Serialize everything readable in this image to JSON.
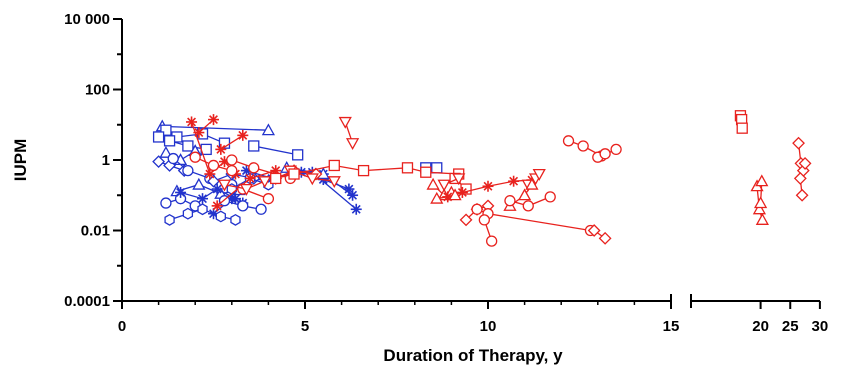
{
  "chart_data": {
    "type": "scatter",
    "title": "",
    "xlabel": "Duration of Therapy, y",
    "ylabel": "IUPM",
    "yscale": "log",
    "ylim": [
      0.0001,
      10000
    ],
    "y_ticks": [
      {
        "value": 0.0001,
        "label": "0.0001"
      },
      {
        "value": 0.01,
        "label": "0.01"
      },
      {
        "value": 1,
        "label": "1"
      },
      {
        "value": 100,
        "label": "100"
      },
      {
        "value": 10000,
        "label": "10 000"
      }
    ],
    "x_axis_segments": [
      {
        "range": [
          0,
          15.8
        ],
        "ticks": [
          {
            "value": 0,
            "label": "0"
          },
          {
            "value": 5,
            "label": "5"
          },
          {
            "value": 10,
            "label": "10"
          },
          {
            "value": 15,
            "label": "15"
          }
        ]
      },
      {
        "range": [
          16.2,
          30
        ],
        "ticks": [
          {
            "value": 20,
            "label": "20"
          },
          {
            "value": 25,
            "label": "25"
          },
          {
            "value": 30,
            "label": "30"
          }
        ]
      }
    ],
    "grid": false,
    "legend": "none",
    "colors": {
      "blue": "#2233cc",
      "red": "#e8221e"
    },
    "series": [
      {
        "color": "blue",
        "marker": "triangle",
        "x": [
          1.1,
          4.0
        ],
        "y": [
          9,
          7
        ]
      },
      {
        "color": "blue",
        "marker": "square",
        "x": [
          1.2,
          1.5,
          2.2,
          2.8
        ],
        "y": [
          7,
          4.5,
          5.5,
          3
        ]
      },
      {
        "color": "blue",
        "marker": "square",
        "x": [
          1.0,
          1.3,
          1.8,
          2.3
        ],
        "y": [
          4.5,
          3.5,
          2.5,
          2
        ]
      },
      {
        "color": "blue",
        "marker": "square",
        "x": [
          3.6,
          4.8
        ],
        "y": [
          2.5,
          1.4
        ]
      },
      {
        "color": "blue",
        "marker": "square",
        "x": [
          8.3,
          8.6
        ],
        "y": [
          0.6,
          0.6
        ]
      },
      {
        "color": "blue",
        "marker": "triangle",
        "x": [
          1.2,
          1.6,
          2.0
        ],
        "y": [
          1.6,
          1.0,
          1.8
        ]
      },
      {
        "color": "blue",
        "marker": "diamond",
        "x": [
          1.0,
          1.3,
          1.7
        ],
        "y": [
          0.9,
          0.7,
          0.5
        ]
      },
      {
        "color": "blue",
        "marker": "circle",
        "x": [
          1.4,
          1.8,
          2.4,
          3.0
        ],
        "y": [
          1.1,
          0.5,
          0.3,
          0.2
        ]
      },
      {
        "color": "blue",
        "marker": "triangle",
        "x": [
          1.5,
          2.1,
          2.7,
          3.2
        ],
        "y": [
          0.13,
          0.2,
          0.11,
          0.14
        ]
      },
      {
        "color": "blue",
        "marker": "circle",
        "x": [
          1.2,
          1.6,
          2.0
        ],
        "y": [
          0.06,
          0.08,
          0.05
        ]
      },
      {
        "color": "blue",
        "marker": "star",
        "x": [
          1.6,
          2.2,
          2.6,
          3.1
        ],
        "y": [
          0.12,
          0.08,
          0.15,
          0.08
        ]
      },
      {
        "color": "blue",
        "marker": "star",
        "x": [
          2.5,
          3.0,
          3.3
        ],
        "y": [
          0.03,
          0.08,
          0.06
        ]
      },
      {
        "color": "blue",
        "marker": "hexagon",
        "x": [
          1.3,
          1.8,
          2.2,
          2.7,
          3.1
        ],
        "y": [
          0.02,
          0.03,
          0.04,
          0.025,
          0.02
        ]
      },
      {
        "color": "blue",
        "marker": "diamond",
        "x": [
          2.5,
          3.0,
          3.6,
          4.0
        ],
        "y": [
          0.25,
          0.4,
          0.3,
          0.25
        ]
      },
      {
        "color": "blue",
        "marker": "circle",
        "x": [
          2.8,
          3.3,
          3.8
        ],
        "y": [
          0.07,
          0.05,
          0.04
        ]
      },
      {
        "color": "blue",
        "marker": "hexagon",
        "x": [
          3.0,
          3.5,
          4.0
        ],
        "y": [
          0.15,
          0.3,
          0.2
        ]
      },
      {
        "color": "blue",
        "marker": "star",
        "x": [
          3.4,
          4.1,
          4.9,
          5.5,
          6.2
        ],
        "y": [
          0.5,
          0.3,
          0.45,
          0.28,
          0.15
        ]
      },
      {
        "color": "blue",
        "marker": "star",
        "x": [
          5.2,
          6.4
        ],
        "y": [
          0.45,
          0.04
        ]
      },
      {
        "color": "blue",
        "marker": "star",
        "x": [
          5.5,
          6.3
        ],
        "y": [
          0.4,
          0.1
        ]
      },
      {
        "color": "blue",
        "marker": "triangle",
        "x": [
          4.5,
          5.5
        ],
        "y": [
          0.6,
          0.4
        ]
      },
      {
        "color": "red",
        "marker": "star",
        "x": [
          1.9,
          2.4,
          2.8,
          3.1
        ],
        "y": [
          12,
          0.4,
          0.9,
          0.4
        ]
      },
      {
        "color": "red",
        "marker": "star",
        "x": [
          2.1,
          2.5
        ],
        "y": [
          6,
          14
        ]
      },
      {
        "color": "red",
        "marker": "star",
        "x": [
          2.7,
          3.3
        ],
        "y": [
          2,
          5
        ]
      },
      {
        "color": "red",
        "marker": "circle",
        "x": [
          2.0,
          2.5,
          3.0
        ],
        "y": [
          1.2,
          0.7,
          0.5
        ]
      },
      {
        "color": "red",
        "marker": "star",
        "x": [
          2.6,
          3.5,
          4.2
        ],
        "y": [
          0.05,
          0.3,
          0.5
        ]
      },
      {
        "color": "red",
        "marker": "circle",
        "x": [
          3.0,
          3.6,
          4.6
        ],
        "y": [
          1.0,
          0.6,
          0.3
        ]
      },
      {
        "color": "red",
        "marker": "circle",
        "x": [
          3.3,
          4.0
        ],
        "y": [
          0.15,
          0.08
        ]
      },
      {
        "color": "red",
        "marker": "diamond",
        "x": [
          4.2,
          4.7,
          5.3
        ],
        "y": [
          0.3,
          0.5,
          0.4
        ]
      },
      {
        "color": "red",
        "marker": "triangle-down",
        "x": [
          2.8,
          3.4,
          3.9
        ],
        "y": [
          0.2,
          0.15,
          0.25
        ]
      },
      {
        "color": "red",
        "marker": "triangle-down",
        "x": [
          4.6,
          5.2,
          5.8
        ],
        "y": [
          0.5,
          0.3,
          0.25
        ]
      },
      {
        "color": "red",
        "marker": "square",
        "x": [
          4.2,
          4.7,
          5.8,
          6.6,
          7.8,
          8.3,
          9.2
        ],
        "y": [
          0.3,
          0.4,
          0.7,
          0.5,
          0.6,
          0.45,
          0.4
        ]
      },
      {
        "color": "red",
        "marker": "triangle-down",
        "x": [
          6.1,
          6.3
        ],
        "y": [
          12,
          3
        ]
      },
      {
        "color": "red",
        "marker": "square",
        "x": [
          9.1,
          9.4
        ],
        "y": [
          0.3,
          0.15
        ]
      },
      {
        "color": "red",
        "marker": "triangle-down",
        "x": [
          8.8,
          9.2
        ],
        "y": [
          0.2,
          0.3
        ]
      },
      {
        "color": "red",
        "marker": "triangle",
        "x": [
          8.5,
          8.8,
          9.0
        ],
        "y": [
          0.2,
          0.1,
          0.12
        ]
      },
      {
        "color": "red",
        "marker": "star",
        "x": [
          8.9,
          9.3,
          10.0,
          10.7,
          11.2
        ],
        "y": [
          0.09,
          0.12,
          0.18,
          0.25,
          0.27
        ]
      },
      {
        "color": "red",
        "marker": "triangle",
        "x": [
          8.6,
          9.1
        ],
        "y": [
          0.08,
          0.1
        ]
      },
      {
        "color": "red",
        "marker": "diamond",
        "x": [
          9.4,
          9.7,
          10.0
        ],
        "y": [
          0.02,
          0.04,
          0.05
        ]
      },
      {
        "color": "red",
        "marker": "circle",
        "x": [
          9.7,
          10.0,
          12.8
        ],
        "y": [
          0.04,
          0.03,
          0.01
        ]
      },
      {
        "color": "red",
        "marker": "diamond",
        "x": [
          12.9,
          13.2
        ],
        "y": [
          0.01,
          0.006
        ]
      },
      {
        "color": "red",
        "marker": "circle",
        "x": [
          9.9,
          10.1
        ],
        "y": [
          0.02,
          0.005
        ]
      },
      {
        "color": "red",
        "marker": "triangle-down",
        "x": [
          11.1,
          11.3,
          11.4
        ],
        "y": [
          0.2,
          0.3,
          0.4
        ]
      },
      {
        "color": "red",
        "marker": "triangle",
        "x": [
          10.6,
          11.0,
          11.2
        ],
        "y": [
          0.05,
          0.1,
          0.2
        ]
      },
      {
        "color": "red",
        "marker": "circle",
        "x": [
          10.6,
          11.1,
          11.7
        ],
        "y": [
          0.07,
          0.05,
          0.09
        ]
      },
      {
        "color": "red",
        "marker": "circle",
        "x": [
          12.2,
          12.6,
          13.1,
          13.5
        ],
        "y": [
          3.5,
          2.5,
          1.3,
          2
        ]
      },
      {
        "color": "red",
        "marker": "circle",
        "x": [
          13.0,
          13.2
        ],
        "y": [
          1.2,
          1.5
        ]
      },
      {
        "color": "red",
        "marker": "square",
        "x": [
          16.6,
          16.8,
          16.9
        ],
        "y": [
          18,
          14,
          8
        ]
      },
      {
        "color": "red",
        "marker": "triangle",
        "x": [
          19.4,
          19.8,
          20.3
        ],
        "y": [
          0.18,
          0.04,
          0.02
        ]
      },
      {
        "color": "red",
        "marker": "triangle",
        "x": [
          20.0,
          20.2
        ],
        "y": [
          0.06,
          0.25
        ]
      },
      {
        "color": "red",
        "marker": "diamond",
        "x": [
          26.4,
          26.8,
          27.2,
          27.5
        ],
        "y": [
          3,
          0.8,
          0.5,
          0.8
        ]
      },
      {
        "color": "red",
        "marker": "diamond",
        "x": [
          26.7,
          27.0
        ],
        "y": [
          0.3,
          0.1
        ]
      }
    ]
  }
}
